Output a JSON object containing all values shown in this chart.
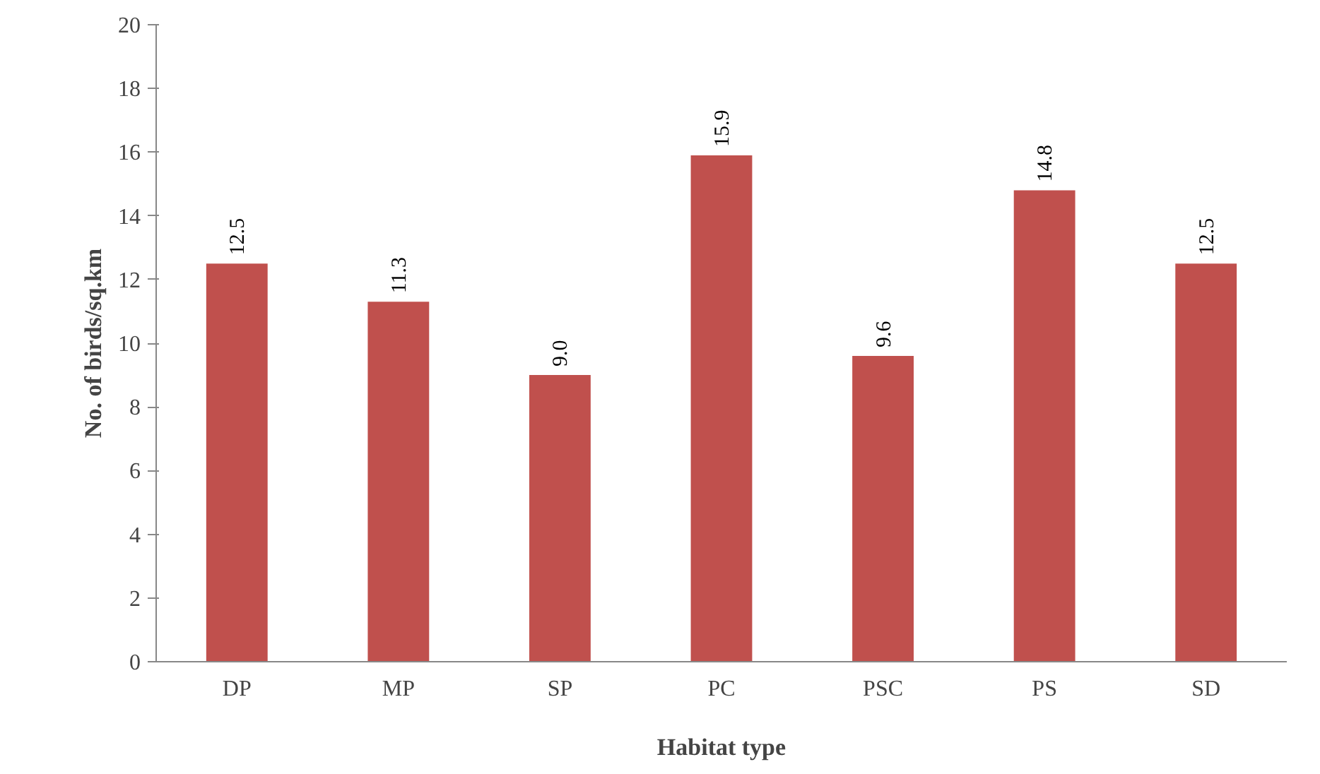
{
  "chart_data": {
    "type": "bar",
    "xlabel": "Habitat type",
    "ylabel": "No. of birds/sq.km",
    "categories": [
      "DP",
      "MP",
      "SP",
      "PC",
      "PSC",
      "PS",
      "SD"
    ],
    "values": [
      12.5,
      11.3,
      9.0,
      15.9,
      9.6,
      14.8,
      12.5
    ],
    "value_labels": [
      "12.5",
      "11.3",
      "9.0",
      "15.9",
      "9.6",
      "14.8",
      "12.5"
    ],
    "color": "#c0504d",
    "ylim": [
      0,
      20
    ],
    "yticks": [
      0,
      2,
      4,
      6,
      8,
      10,
      12,
      14,
      16,
      18,
      20
    ],
    "grid": false
  }
}
